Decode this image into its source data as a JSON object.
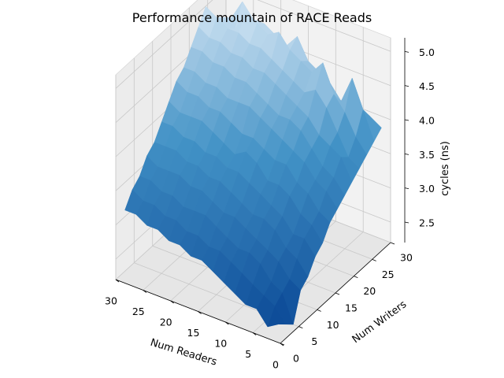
{
  "chart_data": {
    "type": "surface3d",
    "title": "Performance mountain of RACE Reads",
    "xlabel": "Num Readers",
    "ylabel": "Num Writers",
    "zlabel": "cycles (ns)",
    "xlim": [
      0,
      30
    ],
    "ylim": [
      0,
      30
    ],
    "zlim": [
      2.2,
      5.2
    ],
    "x_ticks": [
      "0",
      "5",
      "10",
      "15",
      "20",
      "25",
      "30"
    ],
    "y_ticks": [
      "0",
      "5",
      "10",
      "15",
      "20",
      "25",
      "30"
    ],
    "z_ticks": [
      "2.5",
      "3.0",
      "3.5",
      "4.0",
      "4.5",
      "5.0"
    ],
    "colormap": "Blues",
    "grid": true,
    "x": [
      1,
      3,
      5,
      7,
      9,
      11,
      13,
      15,
      17,
      19,
      21,
      23,
      25,
      27,
      29
    ],
    "y": [
      1,
      3,
      5,
      7,
      9,
      11,
      13,
      15,
      17,
      19,
      21,
      23,
      25,
      27,
      29
    ],
    "z": [
      [
        2.4,
        2.3,
        2.2,
        2.6,
        2.7,
        2.9,
        3.0,
        3.2,
        3.3,
        3.4,
        3.5,
        3.6,
        3.7,
        3.8,
        3.9
      ],
      [
        2.3,
        2.5,
        2.6,
        2.7,
        2.9,
        3.1,
        3.2,
        3.3,
        3.5,
        3.6,
        3.8,
        3.7,
        3.9,
        4.2,
        4.0
      ],
      [
        2.5,
        2.6,
        2.7,
        2.9,
        3.0,
        3.1,
        3.3,
        3.5,
        3.6,
        3.7,
        3.9,
        4.0,
        4.2,
        4.6,
        3.9
      ],
      [
        2.5,
        2.7,
        2.9,
        3.0,
        3.2,
        3.3,
        3.5,
        3.6,
        3.8,
        3.9,
        4.0,
        4.3,
        4.4,
        4.2,
        4.0
      ],
      [
        2.6,
        2.8,
        3.0,
        3.1,
        3.3,
        3.4,
        3.6,
        3.8,
        3.9,
        4.1,
        4.2,
        4.5,
        4.8,
        4.4,
        4.1
      ],
      [
        2.7,
        2.9,
        3.0,
        3.2,
        3.3,
        3.5,
        3.6,
        3.8,
        4.0,
        4.2,
        4.3,
        4.4,
        4.6,
        4.5,
        4.2
      ],
      [
        2.8,
        3.0,
        3.1,
        3.3,
        3.4,
        3.6,
        3.8,
        3.9,
        4.1,
        4.2,
        4.4,
        4.5,
        4.7,
        4.6,
        4.3
      ],
      [
        2.9,
        3.0,
        3.2,
        3.3,
        3.5,
        3.7,
        3.9,
        4.0,
        4.2,
        4.3,
        4.5,
        4.6,
        4.8,
        4.9,
        4.4
      ],
      [
        2.9,
        3.1,
        3.3,
        3.4,
        3.6,
        3.7,
        3.8,
        4.0,
        4.3,
        4.4,
        4.6,
        4.7,
        5.0,
        4.7,
        4.5
      ],
      [
        3.0,
        3.1,
        3.3,
        3.5,
        3.6,
        3.8,
        3.9,
        4.1,
        4.3,
        4.5,
        4.6,
        4.8,
        4.9,
        4.8,
        4.5
      ],
      [
        3.0,
        3.2,
        3.3,
        3.5,
        3.7,
        3.8,
        4.0,
        4.2,
        4.3,
        4.5,
        4.7,
        4.8,
        5.0,
        4.9,
        4.6
      ],
      [
        3.1,
        3.2,
        3.4,
        3.6,
        3.7,
        3.9,
        4.1,
        4.2,
        4.4,
        4.6,
        4.7,
        4.9,
        5.1,
        4.9,
        4.6
      ],
      [
        3.1,
        3.3,
        3.4,
        3.6,
        3.8,
        3.9,
        4.1,
        4.3,
        4.4,
        4.6,
        4.8,
        4.9,
        4.8,
        5.1,
        4.7
      ],
      [
        3.2,
        3.3,
        3.5,
        3.6,
        3.8,
        4.0,
        4.1,
        4.3,
        4.5,
        4.7,
        4.8,
        5.0,
        4.9,
        4.8,
        4.6
      ],
      [
        3.2,
        3.4,
        3.5,
        3.7,
        3.8,
        4.0,
        4.2,
        4.4,
        4.5,
        4.7,
        4.9,
        5.1,
        4.8,
        4.7,
        4.5
      ]
    ]
  }
}
